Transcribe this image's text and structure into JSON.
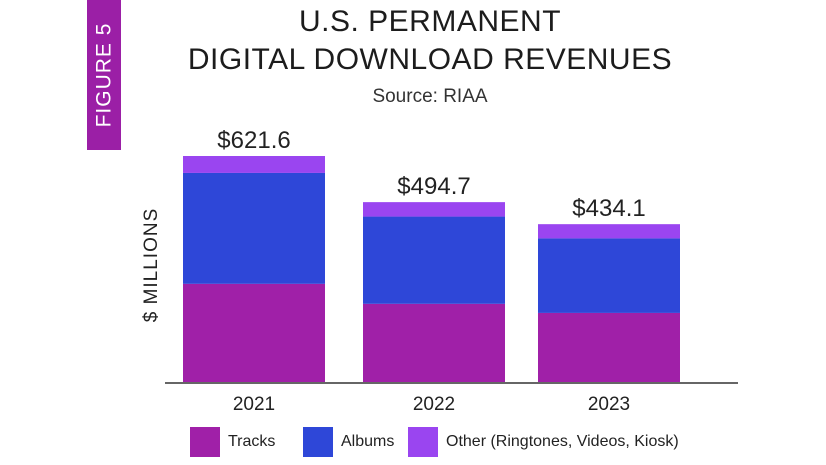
{
  "figure_label": "FIGURE 5",
  "chart_data": {
    "type": "bar",
    "stacked": true,
    "title_line1": "U.S. PERMANENT",
    "title_line2": "DIGITAL DOWNLOAD REVENUES",
    "subtitle": "Source: RIAA",
    "ylabel": "$ MILLIONS",
    "xlabel": "",
    "categories": [
      "2021",
      "2022",
      "2023"
    ],
    "totals_labels": [
      "$621.6",
      "$494.7",
      "$434.1"
    ],
    "totals": [
      621.6,
      494.7,
      434.1
    ],
    "ylim": [
      0,
      621.6
    ],
    "series": [
      {
        "name": "Tracks",
        "color": "#a020a8",
        "values": [
          270,
          215,
          190
        ]
      },
      {
        "name": "Albums",
        "color": "#2e47d8",
        "values": [
          305,
          240,
          205
        ]
      },
      {
        "name": "Other (Ringtones, Videos, Kiosk)",
        "color": "#9a45f0",
        "values": [
          46.6,
          39.7,
          39.1
        ]
      }
    ],
    "grid": false,
    "legend_position": "bottom"
  }
}
